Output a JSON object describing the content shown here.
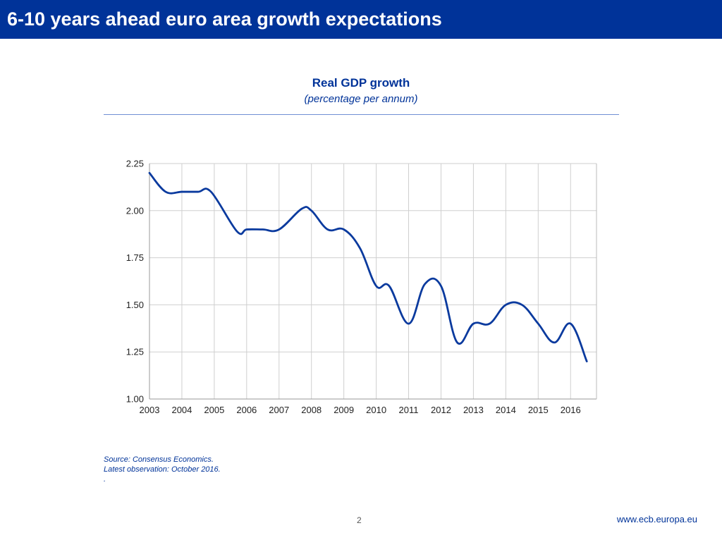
{
  "header": {
    "title": "6-10 years ahead euro area growth expectations"
  },
  "colors": {
    "brand": "#003399",
    "line": "#0a3a9e",
    "grid": "#cfcfcf"
  },
  "chart_data": {
    "type": "line",
    "title": "Real GDP growth",
    "subtitle": "(percentage per annum)",
    "xlabel": "",
    "ylabel": "",
    "ylim": [
      1.0,
      2.25
    ],
    "xlim": [
      2003,
      2016.8
    ],
    "yticks": [
      "1.00",
      "1.25",
      "1.50",
      "1.75",
      "2.00",
      "2.25"
    ],
    "xticks": [
      "2003",
      "2004",
      "2005",
      "2006",
      "2007",
      "2008",
      "2009",
      "2010",
      "2011",
      "2012",
      "2013",
      "2014",
      "2015",
      "2016"
    ],
    "grid": true,
    "legend": "none",
    "series": [
      {
        "x": [
          2003.0,
          2003.5,
          2004.0,
          2004.5,
          2004.9,
          2005.7,
          2006.0,
          2006.5,
          2007.0,
          2007.7,
          2008.0,
          2008.5,
          2009.0,
          2009.5,
          2010.0,
          2010.4,
          2011.0,
          2011.5,
          2012.0,
          2012.5,
          2013.0,
          2013.5,
          2014.0,
          2014.5,
          2015.0,
          2015.5,
          2016.0,
          2016.5
        ],
        "values": [
          2.2,
          2.1,
          2.1,
          2.1,
          2.1,
          1.89,
          1.9,
          1.9,
          1.9,
          2.01,
          2.0,
          1.9,
          1.9,
          1.8,
          1.6,
          1.6,
          1.4,
          1.61,
          1.6,
          1.3,
          1.4,
          1.4,
          1.5,
          1.5,
          1.4,
          1.3,
          1.4,
          1.2
        ]
      }
    ]
  },
  "notes": {
    "source": "Source: Consensus Economics.",
    "latest": "Latest observation: October  2016.",
    "dot": "."
  },
  "footer": {
    "page_number": "2",
    "url": "www.ecb.europa.eu"
  }
}
